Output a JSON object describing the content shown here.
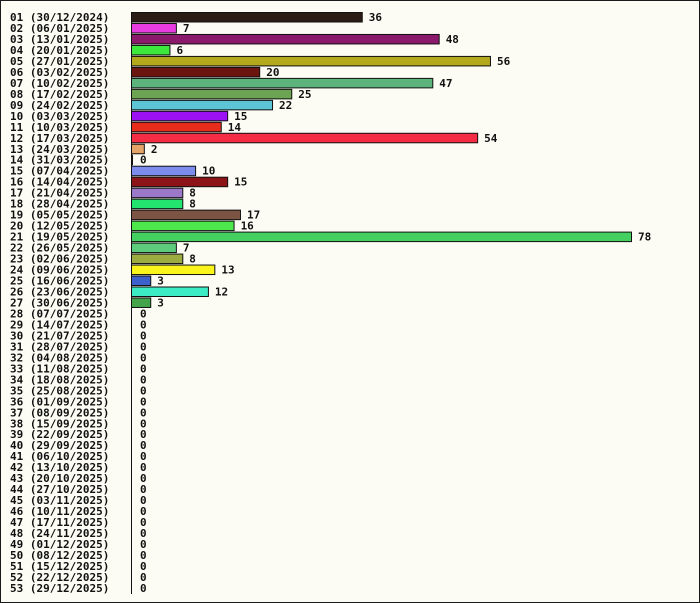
{
  "chart_data": {
    "type": "bar",
    "orientation": "horizontal",
    "title": "",
    "xlabel": "",
    "ylabel": "",
    "grid": false,
    "legend": "none",
    "xlim": [
      0,
      78
    ],
    "categories": [
      "01 (30/12/2024)",
      "02 (06/01/2025)",
      "03 (13/01/2025)",
      "04 (20/01/2025)",
      "05 (27/01/2025)",
      "06 (03/02/2025)",
      "07 (10/02/2025)",
      "08 (17/02/2025)",
      "09 (24/02/2025)",
      "10 (03/03/2025)",
      "11 (10/03/2025)",
      "12 (17/03/2025)",
      "13 (24/03/2025)",
      "14 (31/03/2025)",
      "15 (07/04/2025)",
      "16 (14/04/2025)",
      "17 (21/04/2025)",
      "18 (28/04/2025)",
      "19 (05/05/2025)",
      "20 (12/05/2025)",
      "21 (19/05/2025)",
      "22 (26/05/2025)",
      "23 (02/06/2025)",
      "24 (09/06/2025)",
      "25 (16/06/2025)",
      "26 (23/06/2025)",
      "27 (30/06/2025)",
      "28 (07/07/2025)",
      "29 (14/07/2025)",
      "30 (21/07/2025)",
      "31 (28/07/2025)",
      "32 (04/08/2025)",
      "33 (11/08/2025)",
      "34 (18/08/2025)",
      "35 (25/08/2025)",
      "36 (01/09/2025)",
      "37 (08/09/2025)",
      "38 (15/09/2025)",
      "39 (22/09/2025)",
      "40 (29/09/2025)",
      "41 (06/10/2025)",
      "42 (13/10/2025)",
      "43 (20/10/2025)",
      "44 (27/10/2025)",
      "45 (03/11/2025)",
      "46 (10/11/2025)",
      "47 (17/11/2025)",
      "48 (24/11/2025)",
      "49 (01/12/2025)",
      "50 (08/12/2025)",
      "51 (15/12/2025)",
      "52 (22/12/2025)",
      "53 (29/12/2025)"
    ],
    "values": [
      36,
      7,
      48,
      6,
      56,
      20,
      47,
      25,
      22,
      15,
      14,
      54,
      2,
      0,
      10,
      15,
      8,
      8,
      17,
      16,
      78,
      7,
      8,
      13,
      3,
      12,
      3,
      0,
      0,
      0,
      0,
      0,
      0,
      0,
      0,
      0,
      0,
      0,
      0,
      0,
      0,
      0,
      0,
      0,
      0,
      0,
      0,
      0,
      0,
      0,
      0,
      0,
      0
    ],
    "colors": [
      "#2a1c14",
      "#e83ce0",
      "#8c1a6c",
      "#3ce83c",
      "#b4a81c",
      "#6c1410",
      "#5cb47c",
      "#6ca454",
      "#5cc4d4",
      "#9c10f4",
      "#e82c1c",
      "#f42c44",
      "#e4a468",
      "#ffffff",
      "#7c8cec",
      "#8c1418",
      "#9c78c8",
      "#24e470",
      "#7c5444",
      "#4ce84c",
      "#44d060",
      "#5ccc7c",
      "#9cac40",
      "#f8f41c",
      "#3c60cc",
      "#3cecc4",
      "#44a44c",
      "#ffffff",
      "#ffffff",
      "#ffffff",
      "#ffffff",
      "#ffffff",
      "#ffffff",
      "#ffffff",
      "#ffffff",
      "#ffffff",
      "#ffffff",
      "#ffffff",
      "#ffffff",
      "#ffffff",
      "#ffffff",
      "#ffffff",
      "#ffffff",
      "#ffffff",
      "#ffffff",
      "#ffffff",
      "#ffffff",
      "#ffffff",
      "#ffffff",
      "#ffffff",
      "#ffffff",
      "#ffffff",
      "#ffffff"
    ]
  }
}
